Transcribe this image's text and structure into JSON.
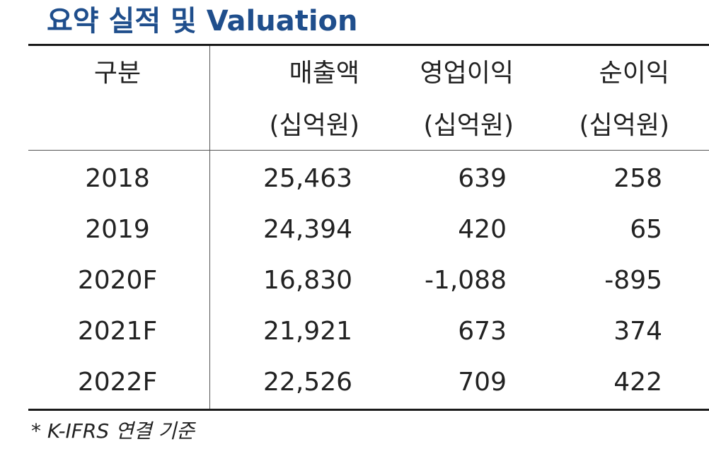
{
  "title": "요약 실적 및 Valuation",
  "header": {
    "year": "구분",
    "sales": "매출액",
    "operating_profit": "영업이익",
    "net_income": "순이익",
    "unit_sales": "(십억원)",
    "unit_op": "(십억원)",
    "unit_net": "(십억원)"
  },
  "rows": [
    {
      "year": "2018",
      "sales": "25,463",
      "operating_profit": "639",
      "net_income": "258"
    },
    {
      "year": "2019",
      "sales": "24,394",
      "operating_profit": "420",
      "net_income": "65"
    },
    {
      "year": "2020F",
      "sales": "16,830",
      "operating_profit": "-1,088",
      "net_income": "-895"
    },
    {
      "year": "2021F",
      "sales": "21,921",
      "operating_profit": "673",
      "net_income": "374"
    },
    {
      "year": "2022F",
      "sales": "22,526",
      "operating_profit": "709",
      "net_income": "422"
    }
  ],
  "footnote": "* K-IFRS 연결 기준",
  "colors": {
    "title": "#1f4e8c",
    "text": "#222222",
    "rule": "#1a1a1a"
  }
}
